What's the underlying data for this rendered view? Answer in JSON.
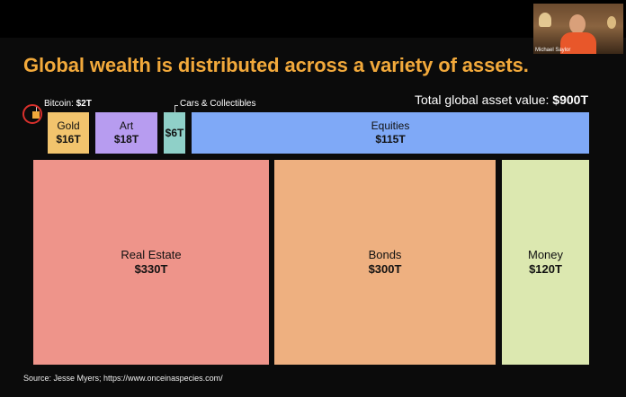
{
  "slide": {
    "title": "Global wealth is distributed across a variety of assets.",
    "total_label": "Total global asset value: ",
    "total_value": "$900T",
    "source": "Source: Jesse Myers; https://www.onceinaspecies.com/"
  },
  "webcam": {
    "name": "Michael Saylor"
  },
  "annotations": {
    "bitcoin_label": "Bitcoin: ",
    "bitcoin_value": "$2T",
    "cars_label": "Cars & Collectibles"
  },
  "colors": {
    "title": "#f2a93b",
    "bitcoin": "#f2a93b",
    "gold": "#f2c46d",
    "art": "#b79cf0",
    "cars": "#8fd0c8",
    "equities": "#7fa9f7",
    "real_estate": "#ee948a",
    "bonds": "#eeb080",
    "money": "#dce8b0"
  },
  "chart_data": {
    "type": "treemap",
    "title": "Global wealth is distributed across a variety of assets.",
    "unit": "Trillion USD",
    "total": 900,
    "items": [
      {
        "name": "Bitcoin",
        "value": 2,
        "label": "$2T",
        "color": "#f2a93b"
      },
      {
        "name": "Gold",
        "value": 16,
        "label": "$16T",
        "color": "#f2c46d"
      },
      {
        "name": "Art",
        "value": 18,
        "label": "$18T",
        "color": "#b79cf0"
      },
      {
        "name": "Cars & Collectibles",
        "value": 6,
        "label": "$6T",
        "color": "#8fd0c8"
      },
      {
        "name": "Equities",
        "value": 115,
        "label": "$115T",
        "color": "#7fa9f7"
      },
      {
        "name": "Real Estate",
        "value": 330,
        "label": "$330T",
        "color": "#ee948a"
      },
      {
        "name": "Bonds",
        "value": 300,
        "label": "$300T",
        "color": "#eeb080"
      },
      {
        "name": "Money",
        "value": 120,
        "label": "$120T",
        "color": "#dce8b0"
      }
    ]
  }
}
